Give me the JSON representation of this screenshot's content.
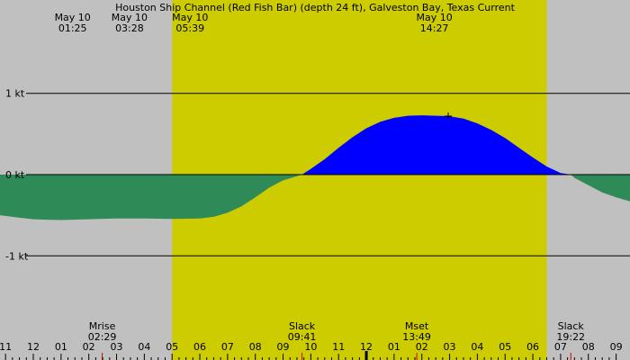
{
  "chart_data": {
    "type": "area",
    "title": "Houston Ship Channel (Red Fish Bar) (depth 24 ft), Galveston Bay, Texas Current",
    "xlabel": "",
    "ylabel": "",
    "x_unit": "hours",
    "xlim": [
      10.8,
      33.5
    ],
    "ylim": [
      -1.95,
      1.95
    ],
    "daylight": [
      17.0,
      30.5
    ],
    "colors": {
      "background": "#c0c0c0",
      "daylight": "#cccc00",
      "flood": "#0000ff",
      "ebb": "#2e8b57",
      "tick_minor": "#000000",
      "tick_event": "#cc0000"
    },
    "y_ticks": [
      {
        "value": 1,
        "label": "1 kt"
      },
      {
        "value": 0,
        "label": "0 kt"
      },
      {
        "value": -1,
        "label": "-1 kt"
      }
    ],
    "x_ticks": [
      {
        "hour": 11,
        "label": "11"
      },
      {
        "hour": 12,
        "label": "12"
      },
      {
        "hour": 13,
        "label": "01"
      },
      {
        "hour": 14,
        "label": "02"
      },
      {
        "hour": 15,
        "label": "03"
      },
      {
        "hour": 16,
        "label": "04"
      },
      {
        "hour": 17,
        "label": "05"
      },
      {
        "hour": 18,
        "label": "06"
      },
      {
        "hour": 19,
        "label": "07"
      },
      {
        "hour": 20,
        "label": "08"
      },
      {
        "hour": 21,
        "label": "09"
      },
      {
        "hour": 22,
        "label": "10"
      },
      {
        "hour": 23,
        "label": "11"
      },
      {
        "hour": 24,
        "label": "12"
      },
      {
        "hour": 25,
        "label": "01"
      },
      {
        "hour": 26,
        "label": "02"
      },
      {
        "hour": 27,
        "label": "03"
      },
      {
        "hour": 28,
        "label": "04"
      },
      {
        "hour": 29,
        "label": "05"
      },
      {
        "hour": 30,
        "label": "06"
      },
      {
        "hour": 31,
        "label": "07"
      },
      {
        "hour": 32,
        "label": "08"
      },
      {
        "hour": 33,
        "label": "09"
      }
    ],
    "series": [
      {
        "x": [
          10.8,
          11.5,
          12.0,
          12.5,
          13.0,
          14.0,
          15.0,
          16.0,
          17.0,
          18.0,
          18.5,
          19.0,
          19.5,
          20.0,
          20.5,
          21.0,
          21.4,
          21.68,
          22.0,
          22.5,
          23.0,
          23.5,
          24.0,
          24.5,
          25.0,
          25.5,
          26.0,
          26.5,
          26.95,
          27.5,
          28.0,
          28.5,
          29.0,
          29.5,
          30.0,
          30.5,
          31.0,
          31.37,
          31.5,
          32.0,
          32.5,
          33.0,
          33.5
        ],
        "y": [
          -0.5,
          -0.53,
          -0.55,
          -0.555,
          -0.56,
          -0.55,
          -0.54,
          -0.54,
          -0.545,
          -0.54,
          -0.52,
          -0.47,
          -0.39,
          -0.28,
          -0.16,
          -0.07,
          -0.03,
          0.0,
          0.07,
          0.19,
          0.33,
          0.46,
          0.57,
          0.65,
          0.7,
          0.725,
          0.73,
          0.725,
          0.72,
          0.69,
          0.63,
          0.55,
          0.45,
          0.33,
          0.21,
          0.1,
          0.02,
          0.0,
          -0.04,
          -0.13,
          -0.22,
          -0.28,
          -0.33
        ]
      }
    ],
    "top_events": [
      {
        "hour": 13.417,
        "date": "May 10",
        "time": "01:25"
      },
      {
        "hour": 15.467,
        "date": "May 10",
        "time": "03:28"
      },
      {
        "hour": 17.65,
        "date": "May 10",
        "time": "05:39"
      },
      {
        "hour": 26.45,
        "date": "May 10",
        "time": "14:27"
      }
    ],
    "bottom_events": [
      {
        "hour": 14.483,
        "name": "Mrise",
        "time": "02:29"
      },
      {
        "hour": 21.683,
        "name": "Slack",
        "time": "09:41"
      },
      {
        "hour": 25.817,
        "name": "Mset",
        "time": "13:49"
      },
      {
        "hour": 31.367,
        "name": "Slack",
        "time": "19:22"
      }
    ],
    "marker": {
      "hour": 26.95,
      "value": 0.72
    }
  }
}
